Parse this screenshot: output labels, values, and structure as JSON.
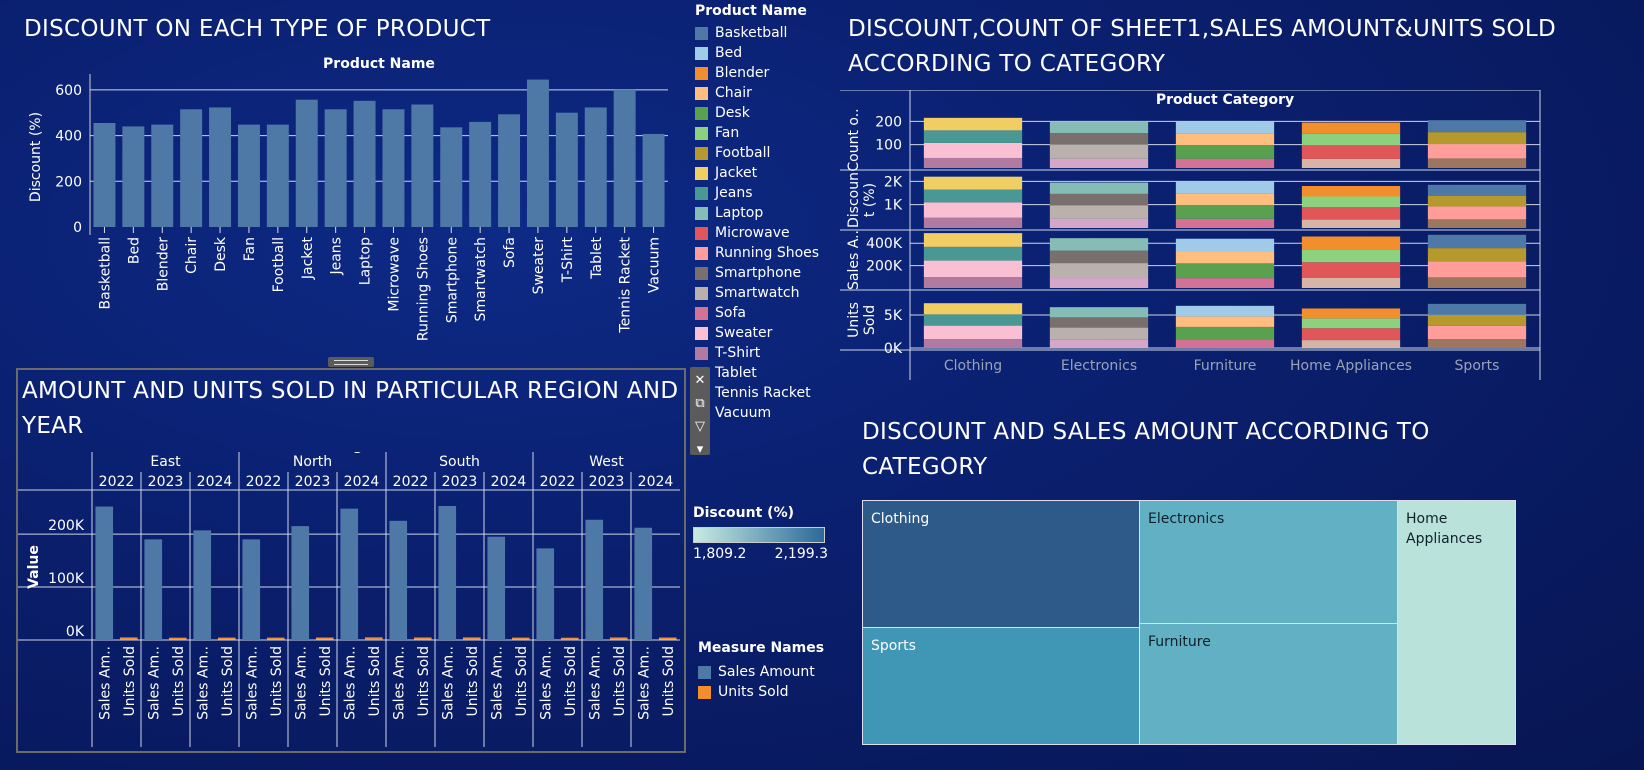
{
  "chart1": {
    "title": "DISCOUNT ON EACH TYPE OF PRODUCT",
    "chart_data": {
      "type": "bar",
      "title": "Product Name",
      "ylabel": "Discount (%)",
      "ylim": [
        0,
        700
      ],
      "yticks": [
        "0",
        "200",
        "400",
        "600"
      ],
      "categories": [
        "Basketball",
        "Bed",
        "Blender",
        "Chair",
        "Desk",
        "Fan",
        "Football",
        "Jacket",
        "Jeans",
        "Laptop",
        "Microwave",
        "Running Shoes",
        "Smartphone",
        "Smartwatch",
        "Sofa",
        "Sweater",
        "T-Shirt",
        "Tablet",
        "Tennis Racket",
        "Vacuum"
      ],
      "values": [
        455,
        440,
        448,
        515,
        523,
        448,
        448,
        557,
        515,
        552,
        515,
        536,
        436,
        460,
        493,
        645,
        500,
        523,
        600,
        407
      ]
    }
  },
  "legend_products": {
    "title": "Product Name",
    "items": [
      {
        "label": "Basketball",
        "color": "#4e79a7"
      },
      {
        "label": "Bed",
        "color": "#a0cbe8"
      },
      {
        "label": "Blender",
        "color": "#f28e2b"
      },
      {
        "label": "Chair",
        "color": "#ffbe7d"
      },
      {
        "label": "Desk",
        "color": "#59a14f"
      },
      {
        "label": "Fan",
        "color": "#8cd17d"
      },
      {
        "label": "Football",
        "color": "#b6992d"
      },
      {
        "label": "Jacket",
        "color": "#f1ce63"
      },
      {
        "label": "Jeans",
        "color": "#499894"
      },
      {
        "label": "Laptop",
        "color": "#86bcb6"
      },
      {
        "label": "Microwave",
        "color": "#e15759"
      },
      {
        "label": "Running Shoes",
        "color": "#ff9d9a"
      },
      {
        "label": "Smartphone",
        "color": "#79706e"
      },
      {
        "label": "Smartwatch",
        "color": "#bab0ac"
      },
      {
        "label": "Sofa",
        "color": "#d37295"
      },
      {
        "label": "Sweater",
        "color": "#fabfd2"
      },
      {
        "label": "T-Shirt",
        "color": "#b07aa1"
      },
      {
        "label": "Tablet",
        "color": "#d4a6c8"
      },
      {
        "label": "Tennis Racket",
        "color": "#9d7660"
      },
      {
        "label": "Vacuum",
        "color": "#d7b5a6"
      }
    ]
  },
  "chart2": {
    "title": "DISCOUNT,COUNT OF SHEET1,SALES AMOUNT&UNITS SOLD ACCORDING TO CATEGORY",
    "chart_data": {
      "type": "bar",
      "title": "Product Category",
      "categories": [
        "Clothing",
        "Electronics",
        "Furniture",
        "Home Appliances",
        "Sports"
      ],
      "rows": [
        {
          "label": "Count o..",
          "ticks": [
            "100",
            "200"
          ],
          "ymax": 240,
          "totals": [
            215,
            200,
            198,
            195,
            205
          ]
        },
        {
          "label": "Discoun\nt (%)",
          "ticks": [
            "1K",
            "2K"
          ],
          "ymax": 2400,
          "totals": [
            2200,
            1950,
            1980,
            1800,
            1850
          ]
        },
        {
          "label": "Sales A..",
          "ticks": [
            "200K",
            "400K"
          ],
          "ymax": 500000,
          "totals": [
            490000,
            445000,
            440000,
            460000,
            475000
          ]
        },
        {
          "label": "Units\nSold",
          "ticks": [
            "0K",
            "5K"
          ],
          "ymax": 8500,
          "totals": [
            6800,
            6200,
            6400,
            6000,
            6700
          ]
        }
      ],
      "stacks": [
        [
          "#b07aa1",
          "#fabfd2",
          "#499894",
          "#f1ce63"
        ],
        [
          "#d4a6c8",
          "#bab0ac",
          "#79706e",
          "#86bcb6"
        ],
        [
          "#d37295",
          "#59a14f",
          "#ffbe7d",
          "#a0cbe8"
        ],
        [
          "#d7b5a6",
          "#e15759",
          "#8cd17d",
          "#f28e2b"
        ],
        [
          "#9d7660",
          "#ff9d9a",
          "#b6992d",
          "#4e79a7"
        ]
      ]
    }
  },
  "chart3": {
    "title": "AMOUNT AND UNITS SOLD IN PARTICULAR REGION AND YEAR",
    "chart_data": {
      "type": "bar",
      "title": "Region / Date",
      "ylabel": "Value",
      "ylim": [
        0,
        270000
      ],
      "yticks": [
        "0K",
        "100K",
        "200K"
      ],
      "regions": [
        "East",
        "North",
        "South",
        "West"
      ],
      "years": [
        "2022",
        "2023",
        "2024"
      ],
      "measure_labels": [
        "Sales Am..",
        "Units Sold"
      ],
      "series": [
        {
          "name": "Sales Amount",
          "values": [
            252000,
            190000,
            207000,
            190000,
            215000,
            248000,
            225000,
            253000,
            195000,
            173000,
            227000,
            212000
          ]
        },
        {
          "name": "Units Sold",
          "values": [
            3000,
            2500,
            2700,
            2600,
            2800,
            3100,
            2900,
            3000,
            2600,
            2400,
            2900,
            2800
          ]
        }
      ]
    }
  },
  "legend_discount": {
    "title": "Discount (%)",
    "min": "1,809.2",
    "max": "2,199.3"
  },
  "legend_measures": {
    "title": "Measure Names",
    "items": [
      {
        "label": "Sales Amount",
        "color": "#4e79a7"
      },
      {
        "label": "Units Sold",
        "color": "#f28e2b"
      }
    ]
  },
  "chart4": {
    "title": "DISCOUNT AND SALES AMOUNT ACCORDING TO CATEGORY",
    "chart_data": {
      "type": "treemap",
      "items": [
        {
          "label": "Clothing",
          "color": "#2e5a8a"
        },
        {
          "label": "Electronics",
          "color": "#62b0c3"
        },
        {
          "label": "Home Appliances",
          "color": "#b9e3da"
        },
        {
          "label": "Sports",
          "color": "#3f97b5"
        },
        {
          "label": "Furniture",
          "color": "#62b0c3"
        }
      ]
    }
  }
}
